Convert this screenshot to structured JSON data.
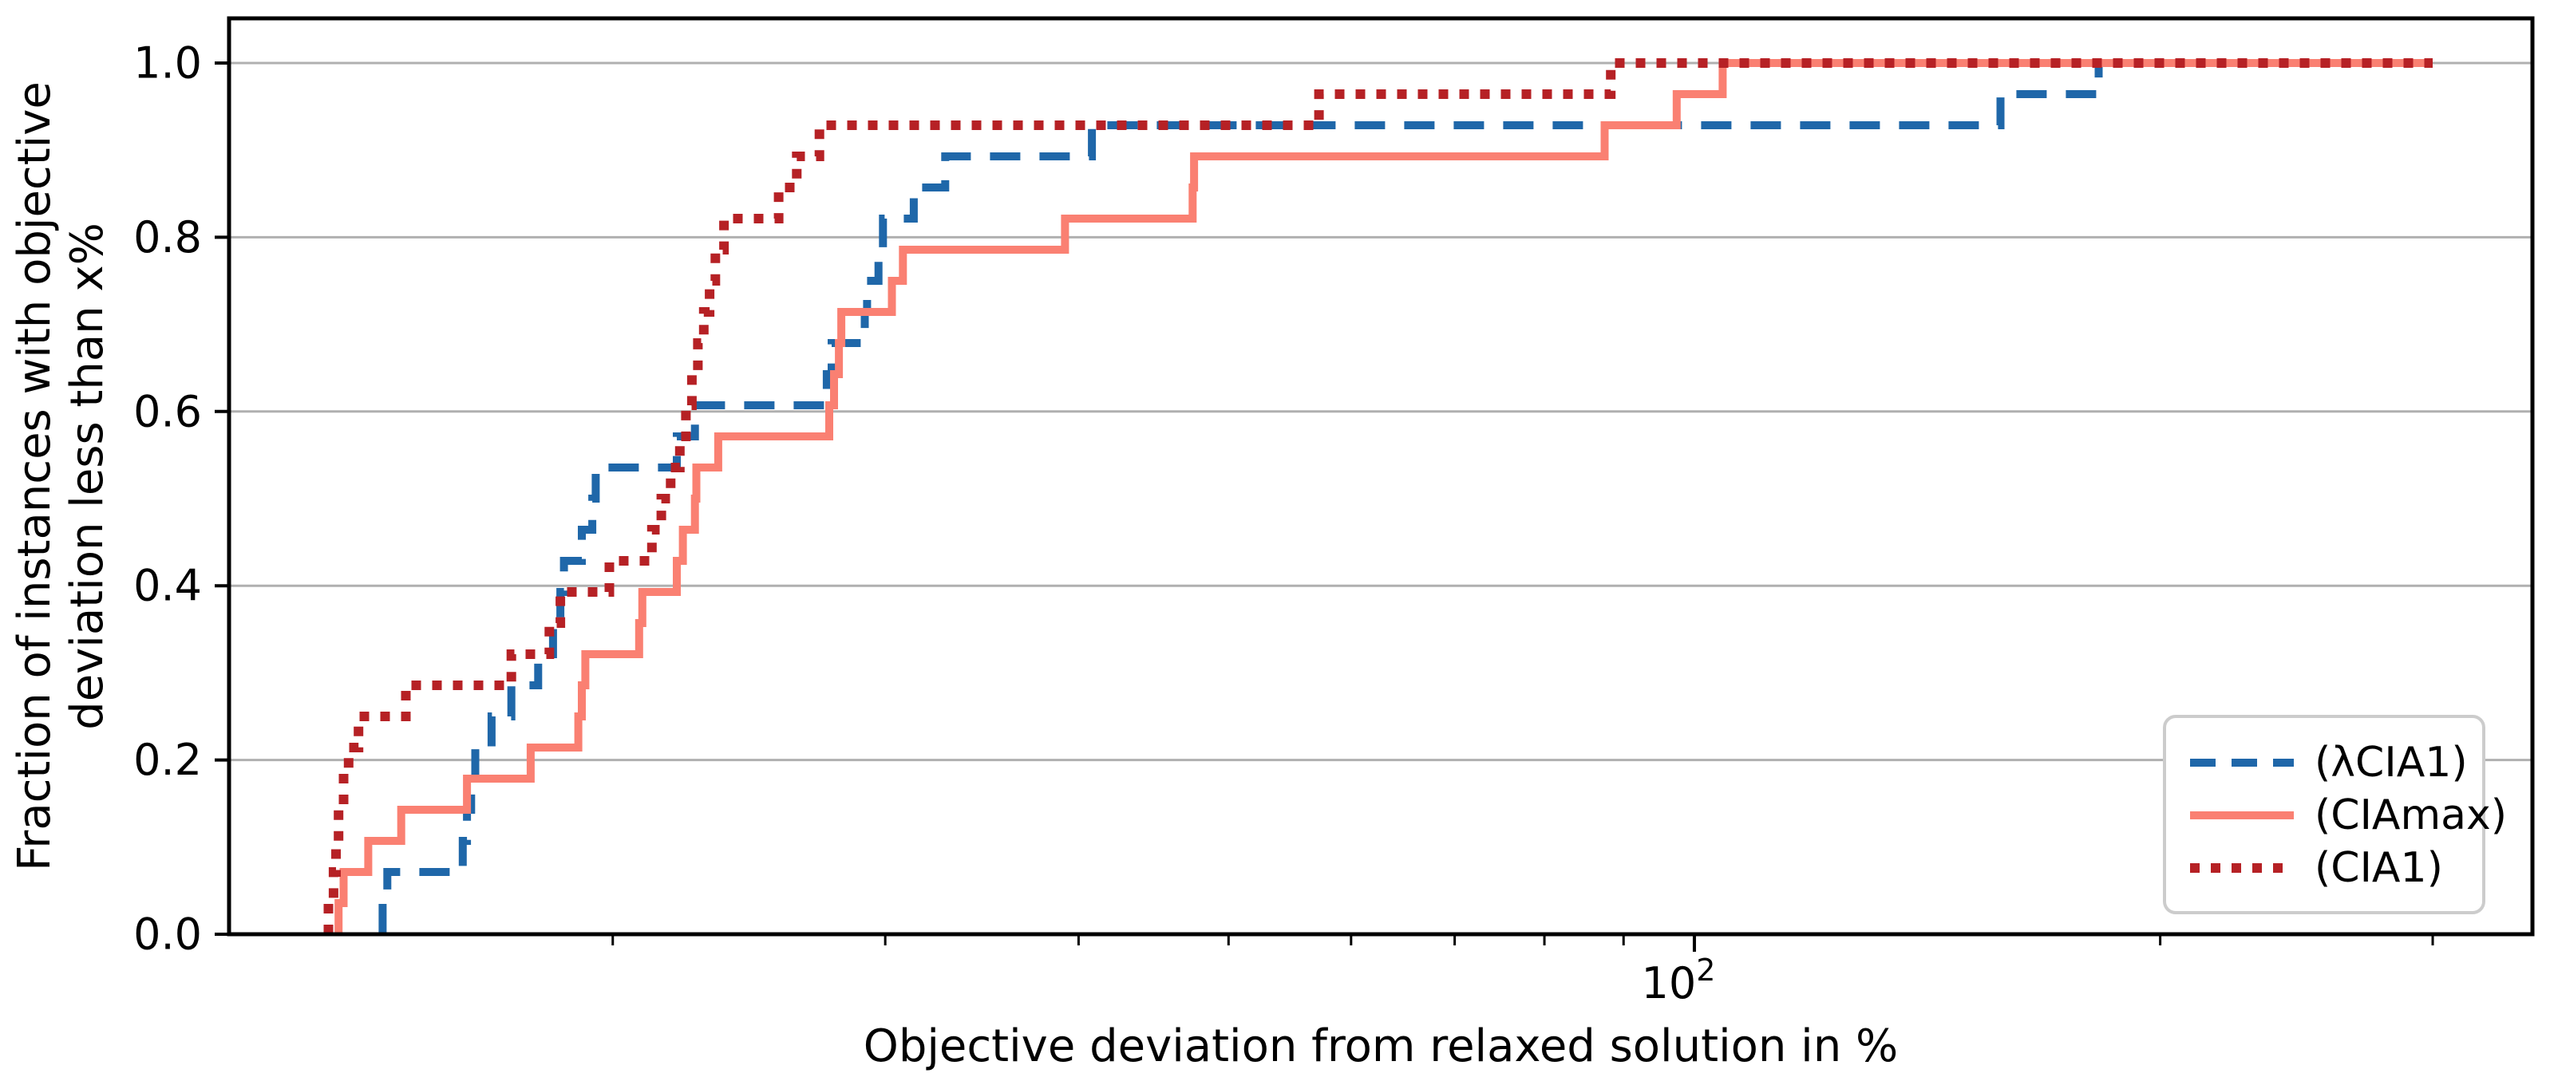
{
  "figure": {
    "background": "#ffffff",
    "xlabel": "Objective deviation from relaxed solution in %",
    "ylabel_lines": [
      "Fraction of instances with objective",
      "deviation less than x%"
    ],
    "colors": {
      "grid": "#b0b0b0",
      "spine": "#000000",
      "legend_border": "#cccccc",
      "legend_background": "#ffffff"
    }
  },
  "chart_data": {
    "type": "line",
    "subtype": "ecdf-step",
    "xscale": "log",
    "xlim": [
      11.3,
      348
    ],
    "ylim": [
      0,
      1.05
    ],
    "grid": "horizontal",
    "legend_position": "lower right",
    "x_axis": {
      "major_tick": {
        "value": 100,
        "label_base": "10",
        "label_exp": "2"
      },
      "minor_ticks": [
        20,
        30,
        40,
        50,
        60,
        70,
        80,
        90,
        200,
        300
      ]
    },
    "y_ticks": [
      {
        "value": 0.0,
        "label": "0.0"
      },
      {
        "value": 0.2,
        "label": "0.2"
      },
      {
        "value": 0.4,
        "label": "0.4"
      },
      {
        "value": 0.6,
        "label": "0.6"
      },
      {
        "value": 0.8,
        "label": "0.8"
      },
      {
        "value": 1.0,
        "label": "1.0"
      }
    ],
    "x_end": 300,
    "instances": 28,
    "series": [
      {
        "name": "(λCIA1)",
        "style": "dashed",
        "color": "#1f67a9",
        "jumps": [
          [
            14.2,
            0.0357
          ],
          [
            14.3,
            0.0714
          ],
          [
            16.0,
            0.1071
          ],
          [
            16.1,
            0.1429
          ],
          [
            16.2,
            0.1786
          ],
          [
            16.3,
            0.2143
          ],
          [
            16.7,
            0.25
          ],
          [
            17.2,
            0.2857
          ],
          [
            17.9,
            0.3214
          ],
          [
            18.3,
            0.3571
          ],
          [
            18.5,
            0.3929
          ],
          [
            18.6,
            0.4286
          ],
          [
            19.1,
            0.4643
          ],
          [
            19.4,
            0.5
          ],
          [
            19.5,
            0.5357
          ],
          [
            22.0,
            0.5714
          ],
          [
            22.6,
            0.6071
          ],
          [
            27.5,
            0.6429
          ],
          [
            27.7,
            0.6786
          ],
          [
            29.1,
            0.7143
          ],
          [
            29.2,
            0.75
          ],
          [
            29.7,
            0.7857
          ],
          [
            29.9,
            0.8214
          ],
          [
            31.3,
            0.8571
          ],
          [
            32.8,
            0.8929
          ],
          [
            40.8,
            0.9286
          ],
          [
            157.7,
            0.9643
          ],
          [
            182.5,
            1.0
          ]
        ]
      },
      {
        "name": "(CIAmax)",
        "style": "solid",
        "color": "#fa8072",
        "jumps": [
          [
            13.3,
            0.0357
          ],
          [
            13.4,
            0.0714
          ],
          [
            13.9,
            0.1071
          ],
          [
            14.6,
            0.1429
          ],
          [
            16.1,
            0.1786
          ],
          [
            17.7,
            0.2143
          ],
          [
            19.0,
            0.25
          ],
          [
            19.1,
            0.2857
          ],
          [
            19.2,
            0.3214
          ],
          [
            20.8,
            0.3571
          ],
          [
            20.9,
            0.3929
          ],
          [
            22.0,
            0.4286
          ],
          [
            22.2,
            0.4643
          ],
          [
            22.6,
            0.5
          ],
          [
            22.65,
            0.5357
          ],
          [
            23.4,
            0.5714
          ],
          [
            27.6,
            0.6071
          ],
          [
            27.8,
            0.6429
          ],
          [
            28.0,
            0.6786
          ],
          [
            28.1,
            0.7143
          ],
          [
            30.3,
            0.75
          ],
          [
            30.8,
            0.7857
          ],
          [
            39.2,
            0.8214
          ],
          [
            47.4,
            0.8571
          ],
          [
            47.5,
            0.8929
          ],
          [
            87.5,
            0.9286
          ],
          [
            97.4,
            0.9643
          ],
          [
            104.3,
            1.0
          ]
        ]
      },
      {
        "name": "(CIA1)",
        "style": "dotted",
        "color": "#b62125",
        "jumps": [
          [
            13.1,
            0.0357
          ],
          [
            13.2,
            0.0714
          ],
          [
            13.25,
            0.1071
          ],
          [
            13.3,
            0.1429
          ],
          [
            13.4,
            0.1786
          ],
          [
            13.5,
            0.2143
          ],
          [
            13.7,
            0.25
          ],
          [
            14.7,
            0.2857
          ],
          [
            17.2,
            0.3214
          ],
          [
            18.2,
            0.3571
          ],
          [
            18.5,
            0.3929
          ],
          [
            19.9,
            0.4286
          ],
          [
            21.2,
            0.4643
          ],
          [
            21.5,
            0.5
          ],
          [
            21.8,
            0.5357
          ],
          [
            22.1,
            0.5714
          ],
          [
            22.3,
            0.6071
          ],
          [
            22.5,
            0.6429
          ],
          [
            22.7,
            0.6786
          ],
          [
            22.9,
            0.7143
          ],
          [
            23.1,
            0.75
          ],
          [
            23.3,
            0.7857
          ],
          [
            23.6,
            0.8214
          ],
          [
            25.6,
            0.8571
          ],
          [
            26.3,
            0.8929
          ],
          [
            27.2,
            0.9286
          ],
          [
            57.2,
            0.9643
          ],
          [
            88.3,
            1.0
          ]
        ]
      }
    ]
  }
}
